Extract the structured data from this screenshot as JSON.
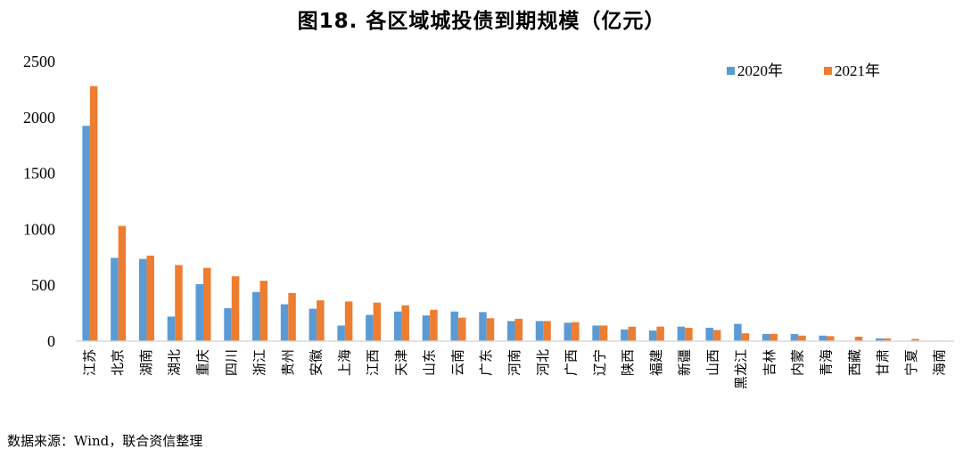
{
  "figure_title": "图18.   各区域城投债到期规模（亿元）",
  "source_note": "数据来源：Wind，联合资信整理",
  "colors": {
    "series_2020": "#5B9BD5",
    "series_2021": "#ED7D31",
    "axis": "#D9D9D9"
  },
  "chart_data": {
    "type": "bar",
    "ylim": [
      0,
      2500
    ],
    "yticks": [
      "0",
      "500",
      "1000",
      "1500",
      "2000",
      "2500"
    ],
    "grid": false,
    "legend_position": "top-right",
    "categories": [
      "江苏",
      "北京",
      "湖南",
      "湖北",
      "重庆",
      "四川",
      "浙江",
      "贵州",
      "安徽",
      "上海",
      "江西",
      "天津",
      "山东",
      "云南",
      "广东",
      "河南",
      "河北",
      "广西",
      "辽宁",
      "陕西",
      "福建",
      "新疆",
      "山西",
      "黑龙江",
      "吉林",
      "内蒙",
      "青海",
      "西藏",
      "甘肃",
      "宁夏",
      "海南"
    ],
    "series": [
      {
        "name": "2020年",
        "values": [
          1925,
          745,
          735,
          220,
          510,
          295,
          440,
          330,
          290,
          140,
          235,
          265,
          230,
          265,
          260,
          180,
          180,
          165,
          140,
          105,
          95,
          130,
          120,
          155,
          65,
          65,
          50,
          0,
          25,
          0,
          5
        ]
      },
      {
        "name": "2021年",
        "values": [
          2280,
          1030,
          765,
          680,
          655,
          580,
          540,
          430,
          365,
          355,
          345,
          320,
          280,
          210,
          205,
          200,
          180,
          170,
          140,
          130,
          130,
          120,
          100,
          70,
          65,
          50,
          45,
          40,
          25,
          20,
          5
        ]
      }
    ]
  }
}
